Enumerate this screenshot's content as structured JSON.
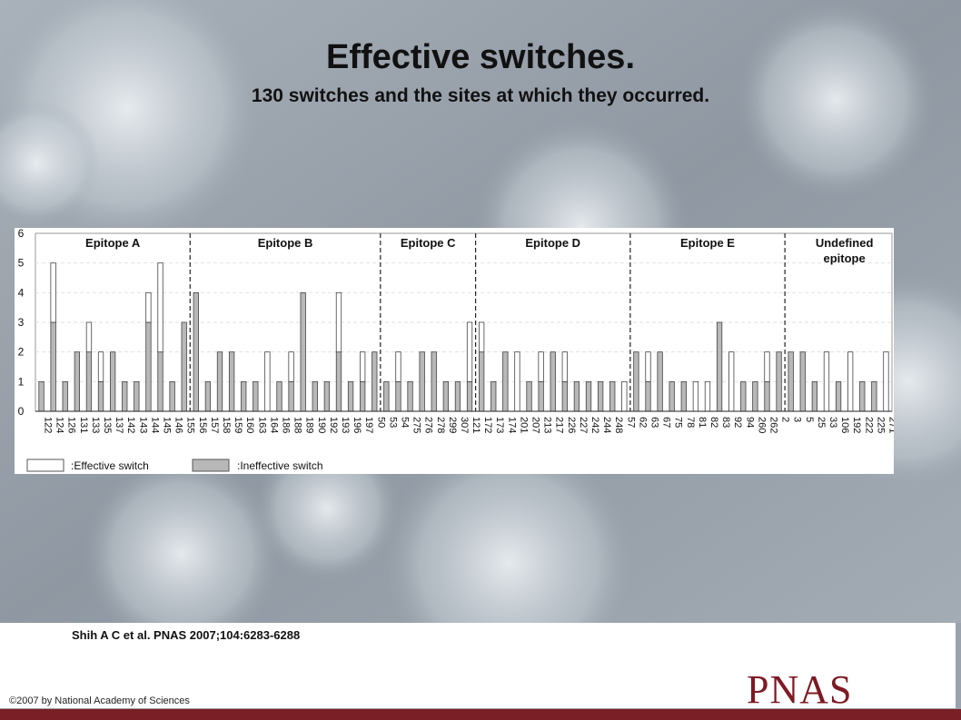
{
  "title": "Effective switches.",
  "subtitle": "130 switches and the sites at which they occurred.",
  "citation": "Shih A C et al. PNAS 2007;104:6283-6288",
  "copyright": "©2007 by National Academy of Sciences",
  "logo_text": "PNAS",
  "colors": {
    "effective": "#ffffff",
    "ineffective": "#b8b8b8",
    "brand": "#7a1f26"
  },
  "chart_data": {
    "type": "bar",
    "stacked": true,
    "ylim": [
      0,
      6
    ],
    "yticks": [
      0,
      1,
      2,
      3,
      4,
      5,
      6
    ],
    "grid": false,
    "legend_position": "bottom-left",
    "legend": [
      {
        "label": ":Effective switch",
        "color": "#ffffff"
      },
      {
        "label": ":Ineffective switch",
        "color": "#b8b8b8"
      }
    ],
    "groups": [
      {
        "label": "Epitope A",
        "count": 13
      },
      {
        "label": "Epitope B",
        "count": 16
      },
      {
        "label": "Epitope C",
        "count": 8
      },
      {
        "label": "Epitope D",
        "count": 13
      },
      {
        "label": "Epitope E",
        "count": 13
      },
      {
        "label": "Undefined\nepitope",
        "count": 10
      }
    ],
    "categories": [
      "122",
      "124",
      "126",
      "131",
      "133",
      "135",
      "137",
      "142",
      "143",
      "144",
      "145",
      "146",
      "155",
      "156",
      "157",
      "158",
      "159",
      "160",
      "163",
      "164",
      "186",
      "188",
      "189",
      "190",
      "192",
      "193",
      "196",
      "197",
      "50",
      "53",
      "54",
      "275",
      "276",
      "278",
      "299",
      "307",
      "121",
      "172",
      "173",
      "174",
      "201",
      "207",
      "213",
      "217",
      "226",
      "227",
      "242",
      "244",
      "248",
      "57",
      "62",
      "63",
      "67",
      "75",
      "78",
      "81",
      "82",
      "83",
      "92",
      "94",
      "260",
      "262",
      "2",
      "3",
      "5",
      "25",
      "33",
      "106",
      "192",
      "222",
      "225",
      "271"
    ],
    "series": [
      {
        "name": "Effective switch",
        "values": [
          0,
          2,
          0,
          0,
          1,
          1,
          0,
          0,
          0,
          1,
          3,
          0,
          0,
          0,
          0,
          0,
          0,
          0,
          0,
          2,
          0,
          1,
          0,
          0,
          0,
          2,
          0,
          1,
          0,
          0,
          1,
          0,
          0,
          0,
          0,
          0,
          2,
          1,
          0,
          0,
          2,
          0,
          1,
          0,
          1,
          0,
          0,
          0,
          0,
          1,
          0,
          1,
          0,
          0,
          0,
          1,
          1,
          0,
          2,
          0,
          0,
          1,
          0,
          0,
          0,
          0,
          2,
          0,
          2,
          0,
          0,
          2
        ]
      },
      {
        "name": "Ineffective switch",
        "values": [
          1,
          3,
          1,
          2,
          2,
          1,
          2,
          1,
          1,
          3,
          2,
          1,
          3,
          4,
          1,
          2,
          2,
          1,
          1,
          0,
          1,
          1,
          4,
          1,
          1,
          2,
          1,
          1,
          2,
          1,
          1,
          1,
          2,
          2,
          1,
          1,
          1,
          2,
          1,
          2,
          0,
          1,
          1,
          2,
          1,
          1,
          1,
          1,
          1,
          0,
          2,
          1,
          2,
          1,
          1,
          0,
          0,
          3,
          0,
          1,
          1,
          1,
          2,
          2,
          2,
          1,
          0,
          1,
          0,
          1,
          1,
          0
        ]
      }
    ]
  }
}
